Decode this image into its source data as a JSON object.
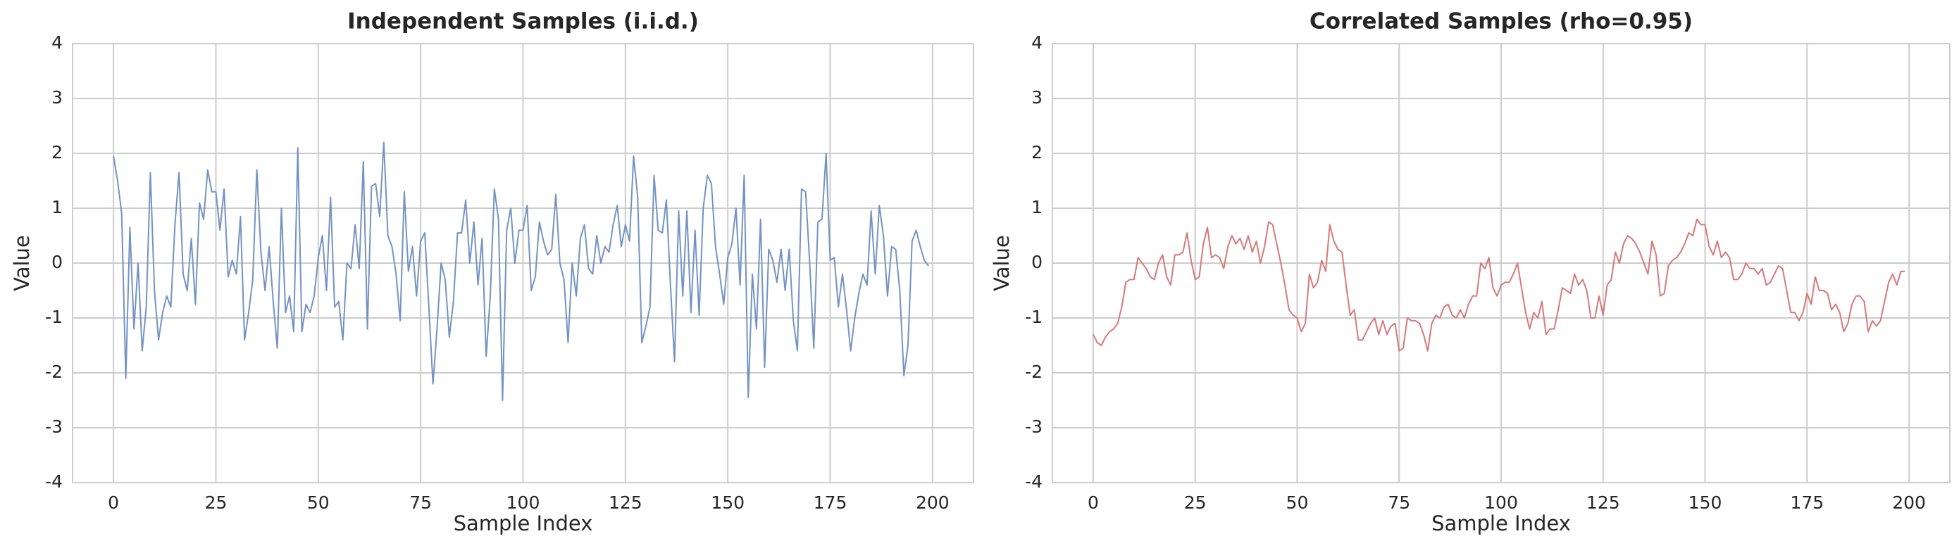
{
  "chart_data": [
    {
      "type": "line",
      "title": "Independent Samples (i.i.d.)",
      "xlabel": "Sample Index",
      "ylabel": "Value",
      "color": "#7393c3",
      "x": [
        0,
        1,
        2,
        3,
        4,
        5,
        6,
        7,
        8,
        9,
        10,
        11,
        12,
        13,
        14,
        15,
        16,
        17,
        18,
        19,
        20,
        21,
        22,
        23,
        24,
        25,
        26,
        27,
        28,
        29,
        30,
        31,
        32,
        33,
        34,
        35,
        36,
        37,
        38,
        39,
        40,
        41,
        42,
        43,
        44,
        45,
        46,
        47,
        48,
        49,
        50,
        51,
        52,
        53,
        54,
        55,
        56,
        57,
        58,
        59,
        60,
        61,
        62,
        63,
        64,
        65,
        66,
        67,
        68,
        69,
        70,
        71,
        72,
        73,
        74,
        75,
        76,
        77,
        78,
        79,
        80,
        81,
        82,
        83,
        84,
        85,
        86,
        87,
        88,
        89,
        90,
        91,
        92,
        93,
        94,
        95,
        96,
        97,
        98,
        99,
        100,
        101,
        102,
        103,
        104,
        105,
        106,
        107,
        108,
        109,
        110,
        111,
        112,
        113,
        114,
        115,
        116,
        117,
        118,
        119,
        120,
        121,
        122,
        123,
        124,
        125,
        126,
        127,
        128,
        129,
        130,
        131,
        132,
        133,
        134,
        135,
        136,
        137,
        138,
        139,
        140,
        141,
        142,
        143,
        144,
        145,
        146,
        147,
        148,
        149,
        150,
        151,
        152,
        153,
        154,
        155,
        156,
        157,
        158,
        159,
        160,
        161,
        162,
        163,
        164,
        165,
        166,
        167,
        168,
        169,
        170,
        171,
        172,
        173,
        174,
        175,
        176,
        177,
        178,
        179,
        180,
        181,
        182,
        183,
        184,
        185,
        186,
        187,
        188,
        189,
        190,
        191,
        192,
        193,
        194,
        195,
        196,
        197,
        198,
        199
      ],
      "values": [
        1.95,
        1.5,
        0.9,
        -2.1,
        0.65,
        -1.2,
        0.0,
        -1.6,
        -0.8,
        1.65,
        -0.5,
        -1.4,
        -0.9,
        -0.6,
        -0.8,
        0.7,
        1.65,
        -0.2,
        -0.5,
        0.45,
        -0.75,
        1.1,
        0.8,
        1.7,
        1.3,
        1.3,
        0.6,
        1.35,
        -0.25,
        0.05,
        -0.2,
        0.85,
        -1.4,
        -0.9,
        -0.3,
        1.7,
        0.2,
        -0.5,
        0.3,
        -0.7,
        -1.55,
        1.0,
        -0.9,
        -0.6,
        -1.25,
        2.1,
        -1.25,
        -0.75,
        -0.9,
        -0.6,
        0.1,
        0.5,
        -0.5,
        1.2,
        -0.8,
        -0.7,
        -1.4,
        0.0,
        -0.1,
        0.7,
        -0.1,
        1.85,
        -1.2,
        1.4,
        1.45,
        0.85,
        2.2,
        0.5,
        0.3,
        -0.2,
        -1.05,
        1.3,
        -0.15,
        0.3,
        -0.6,
        0.4,
        0.55,
        -0.8,
        -2.2,
        -1.2,
        0.0,
        -0.3,
        -1.35,
        -0.7,
        0.55,
        0.55,
        1.15,
        0.0,
        0.75,
        -0.4,
        0.45,
        -1.7,
        -0.6,
        1.35,
        0.8,
        -2.5,
        0.6,
        1.0,
        0.0,
        0.6,
        0.6,
        1.05,
        -0.5,
        -0.25,
        0.75,
        0.4,
        0.15,
        0.25,
        1.25,
        0.0,
        -0.3,
        -1.45,
        0.0,
        -0.6,
        0.45,
        0.7,
        -0.1,
        -0.2,
        0.5,
        0.0,
        0.3,
        0.2,
        0.7,
        1.05,
        0.3,
        0.7,
        0.4,
        1.95,
        1.2,
        -1.45,
        -1.15,
        -0.8,
        1.6,
        0.6,
        0.55,
        1.15,
        -0.4,
        -1.8,
        0.95,
        -0.6,
        0.95,
        -0.9,
        0.6,
        -0.95,
        1.0,
        1.6,
        1.45,
        0.3,
        -0.2,
        -0.75,
        0.1,
        0.35,
        1.0,
        -0.4,
        1.6,
        -2.45,
        -0.2,
        -1.2,
        0.8,
        -1.9,
        0.25,
        0.05,
        -0.35,
        0.25,
        -0.5,
        0.25,
        -1.05,
        -1.6,
        1.35,
        1.3,
        0.0,
        -1.55,
        0.75,
        0.8,
        2.0,
        0.05,
        0.1,
        -0.8,
        -0.2,
        -0.85,
        -1.6,
        -1.0,
        -0.55,
        -0.2,
        -0.4,
        0.95,
        -0.2,
        1.05,
        0.5,
        -0.6,
        0.3,
        0.25,
        -0.5,
        -2.05,
        -1.5,
        0.4,
        0.6,
        0.3,
        0.05,
        -0.05
      ],
      "xlim": [
        -10,
        210
      ],
      "xticks": [
        0,
        25,
        50,
        75,
        100,
        125,
        150,
        175,
        200
      ],
      "ylim": [
        -4,
        4
      ],
      "yticks": [
        -4,
        -3,
        -2,
        -1,
        0,
        1,
        2,
        3,
        4
      ],
      "grid": true
    },
    {
      "type": "line",
      "title": "Correlated Samples (rho=0.95)",
      "xlabel": "Sample Index",
      "ylabel": "Value",
      "color": "#d8787a",
      "x": [
        0,
        1,
        2,
        3,
        4,
        5,
        6,
        7,
        8,
        9,
        10,
        11,
        12,
        13,
        14,
        15,
        16,
        17,
        18,
        19,
        20,
        21,
        22,
        23,
        24,
        25,
        26,
        27,
        28,
        29,
        30,
        31,
        32,
        33,
        34,
        35,
        36,
        37,
        38,
        39,
        40,
        41,
        42,
        43,
        44,
        45,
        46,
        47,
        48,
        49,
        50,
        51,
        52,
        53,
        54,
        55,
        56,
        57,
        58,
        59,
        60,
        61,
        62,
        63,
        64,
        65,
        66,
        67,
        68,
        69,
        70,
        71,
        72,
        73,
        74,
        75,
        76,
        77,
        78,
        79,
        80,
        81,
        82,
        83,
        84,
        85,
        86,
        87,
        88,
        89,
        90,
        91,
        92,
        93,
        94,
        95,
        96,
        97,
        98,
        99,
        100,
        101,
        102,
        103,
        104,
        105,
        106,
        107,
        108,
        109,
        110,
        111,
        112,
        113,
        114,
        115,
        116,
        117,
        118,
        119,
        120,
        121,
        122,
        123,
        124,
        125,
        126,
        127,
        128,
        129,
        130,
        131,
        132,
        133,
        134,
        135,
        136,
        137,
        138,
        139,
        140,
        141,
        142,
        143,
        144,
        145,
        146,
        147,
        148,
        149,
        150,
        151,
        152,
        153,
        154,
        155,
        156,
        157,
        158,
        159,
        160,
        161,
        162,
        163,
        164,
        165,
        166,
        167,
        168,
        169,
        170,
        171,
        172,
        173,
        174,
        175,
        176,
        177,
        178,
        179,
        180,
        181,
        182,
        183,
        184,
        185,
        186,
        187,
        188,
        189,
        190,
        191,
        192,
        193,
        194,
        195,
        196,
        197,
        198,
        199
      ],
      "values": [
        -1.3,
        -1.45,
        -1.5,
        -1.35,
        -1.25,
        -1.2,
        -1.1,
        -0.8,
        -0.35,
        -0.3,
        -0.3,
        0.1,
        0.0,
        -0.1,
        -0.25,
        -0.3,
        0.0,
        0.15,
        -0.25,
        -0.4,
        0.15,
        0.15,
        0.2,
        0.55,
        0.05,
        -0.3,
        -0.25,
        0.35,
        0.65,
        0.1,
        0.15,
        0.1,
        -0.1,
        0.3,
        0.5,
        0.35,
        0.45,
        0.25,
        0.5,
        0.2,
        0.4,
        0.0,
        0.3,
        0.75,
        0.7,
        0.35,
        0.0,
        -0.4,
        -0.85,
        -0.95,
        -1.0,
        -1.25,
        -1.1,
        -0.2,
        -0.45,
        -0.35,
        0.05,
        -0.15,
        0.7,
        0.4,
        0.25,
        0.2,
        -0.4,
        -0.95,
        -0.85,
        -1.4,
        -1.4,
        -1.25,
        -1.1,
        -1.0,
        -1.3,
        -1.05,
        -1.3,
        -1.15,
        -1.1,
        -1.6,
        -1.55,
        -1.0,
        -1.05,
        -1.05,
        -1.1,
        -1.3,
        -1.6,
        -1.1,
        -0.95,
        -1.0,
        -0.8,
        -0.75,
        -0.95,
        -1.0,
        -0.85,
        -1.0,
        -0.75,
        -0.6,
        -0.6,
        0.0,
        -0.1,
        0.1,
        -0.45,
        -0.6,
        -0.4,
        -0.35,
        -0.35,
        -0.2,
        0.0,
        -0.45,
        -0.9,
        -1.2,
        -0.9,
        -1.0,
        -0.7,
        -1.3,
        -1.2,
        -1.2,
        -0.85,
        -0.45,
        -0.5,
        -0.55,
        -0.2,
        -0.4,
        -0.3,
        -0.5,
        -1.0,
        -1.0,
        -0.6,
        -0.95,
        -0.4,
        -0.3,
        0.2,
        0.0,
        0.35,
        0.5,
        0.45,
        0.35,
        0.2,
        0.0,
        -0.2,
        0.4,
        0.15,
        -0.6,
        -0.55,
        -0.05,
        0.05,
        0.1,
        0.2,
        0.35,
        0.55,
        0.5,
        0.8,
        0.7,
        0.7,
        0.3,
        0.15,
        0.4,
        0.1,
        0.2,
        0.1,
        -0.3,
        -0.3,
        -0.2,
        0.0,
        -0.1,
        -0.1,
        -0.2,
        -0.1,
        -0.4,
        -0.35,
        -0.2,
        -0.05,
        -0.1,
        -0.5,
        -0.9,
        -0.9,
        -1.05,
        -0.9,
        -0.55,
        -0.75,
        -0.25,
        -0.5,
        -0.5,
        -0.55,
        -0.85,
        -0.75,
        -0.9,
        -1.25,
        -1.1,
        -0.75,
        -0.6,
        -0.6,
        -0.7,
        -1.25,
        -1.05,
        -1.15,
        -1.05,
        -0.7,
        -0.35,
        -0.2,
        -0.4,
        -0.15,
        -0.15
      ],
      "xlim": [
        -10,
        210
      ],
      "xticks": [
        0,
        25,
        50,
        75,
        100,
        125,
        150,
        175,
        200
      ],
      "ylim": [
        -4,
        4
      ],
      "yticks": [
        -4,
        -3,
        -2,
        -1,
        0,
        1,
        2,
        3,
        4
      ],
      "grid": true
    }
  ]
}
